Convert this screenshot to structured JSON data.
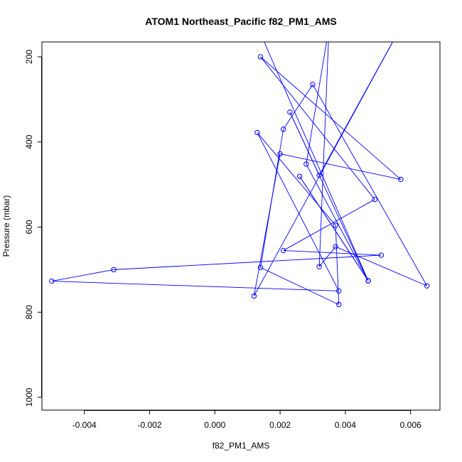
{
  "chart_data": {
    "type": "scatter",
    "title": "ATOM1 Northeast_Pacific f82_PM1_AMS",
    "xlabel": "f82_PM1_AMS",
    "ylabel": "Pressure (mbar)",
    "xlim": [
      -0.0053,
      0.0069
    ],
    "ylim": [
      1030,
      165
    ],
    "y_reversed": true,
    "xticks": [
      -0.004,
      -0.002,
      0.0,
      0.002,
      0.004,
      0.006
    ],
    "xtick_labels": [
      "-0.004",
      "-0.002",
      "0.000",
      "0.002",
      "0.004",
      "0.006"
    ],
    "yticks": [
      200,
      400,
      600,
      800,
      1000
    ],
    "ytick_labels": [
      "200",
      "400",
      "600",
      "800",
      "1000"
    ],
    "series_color": "#0000ff",
    "grid": false,
    "points": [
      {
        "x": 0.0012,
        "y": 110
      },
      {
        "x": 0.0047,
        "y": 726
      },
      {
        "x": 0.0023,
        "y": 330
      },
      {
        "x": 0.0032,
        "y": 478
      },
      {
        "x": 0.0057,
        "y": 130
      },
      {
        "x": 0.0012,
        "y": 762
      },
      {
        "x": 0.002,
        "y": 428
      },
      {
        "x": 0.0057,
        "y": 488
      },
      {
        "x": 0.0014,
        "y": 200
      },
      {
        "x": 0.0049,
        "y": 535
      },
      {
        "x": 0.0021,
        "y": 655
      },
      {
        "x": 0.0051,
        "y": 666
      },
      {
        "x": -0.0031,
        "y": 700
      },
      {
        "x": -0.005,
        "y": 727
      },
      {
        "x": 0.0038,
        "y": 750
      },
      {
        "x": 0.0013,
        "y": 378
      },
      {
        "x": 0.0037,
        "y": 596
      },
      {
        "x": 0.0038,
        "y": 782
      },
      {
        "x": 0.0014,
        "y": 695
      },
      {
        "x": 0.0021,
        "y": 370
      },
      {
        "x": 0.003,
        "y": 265
      },
      {
        "x": 0.0065,
        "y": 738
      },
      {
        "x": 0.0037,
        "y": 646
      },
      {
        "x": 0.0032,
        "y": 693
      },
      {
        "x": 0.0035,
        "y": 130
      },
      {
        "x": 0.0028,
        "y": 452
      },
      {
        "x": 0.0047,
        "y": 726
      },
      {
        "x": 0.0026,
        "y": 481
      },
      {
        "x": 0.0047,
        "y": 726
      }
    ]
  }
}
